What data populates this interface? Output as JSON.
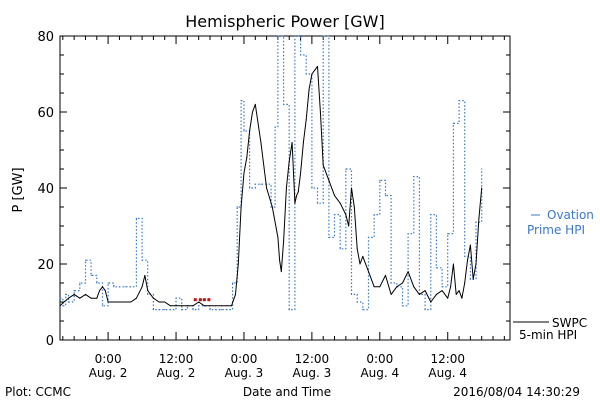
{
  "chart_data": {
    "type": "line",
    "title": "Hemispheric Power [GW]",
    "ylabel": "P [GW]",
    "xlabel": "Date and Time",
    "ylim": [
      0,
      80
    ],
    "xlim": [
      -8.5,
      71
    ],
    "x_unit": "hours from 2016/08/02 00:00 UT",
    "yticks": [
      0,
      20,
      40,
      60,
      80
    ],
    "xticks": [
      {
        "x": 0,
        "time": "0:00",
        "date": "Aug. 2"
      },
      {
        "x": 12,
        "time": "12:00",
        "date": "Aug. 2"
      },
      {
        "x": 24,
        "time": "0:00",
        "date": "Aug. 3"
      },
      {
        "x": 36,
        "time": "12:00",
        "date": "Aug. 3"
      },
      {
        "x": 48,
        "time": "0:00",
        "date": "Aug. 4"
      },
      {
        "x": 60,
        "time": "12:00",
        "date": "Aug. 4"
      }
    ],
    "grid": false,
    "legend": "right",
    "series": [
      {
        "name": "SWPC 5-min HPI",
        "label_lines": [
          "SWPC",
          "5-min HPI"
        ],
        "style": "solid",
        "color": "#000000",
        "x": [
          -8.5,
          -7.8,
          -7,
          -6,
          -5,
          -4,
          -3,
          -2,
          -1.5,
          -1,
          -0.5,
          0,
          1,
          2,
          3,
          4,
          5,
          6,
          6.5,
          7,
          7.5,
          8,
          9,
          10,
          11,
          12,
          13,
          14,
          15,
          16,
          17,
          18,
          19,
          20,
          21,
          21.8,
          22.5,
          23,
          23.5,
          24,
          24.5,
          25,
          25.5,
          26,
          27,
          28,
          29,
          30,
          30.3,
          30.6,
          31,
          31.5,
          32,
          32.5,
          33,
          33.3,
          33.6,
          34,
          34.5,
          35,
          35.5,
          36,
          36.5,
          37,
          37.5,
          38,
          39,
          40,
          41,
          42,
          42.5,
          43,
          43.5,
          44,
          44.5,
          45,
          46,
          47,
          48,
          49,
          50,
          51,
          52,
          53,
          54,
          55,
          56,
          57,
          58,
          59,
          60,
          60.5,
          61,
          61.5,
          62,
          62.5,
          63,
          63.5,
          64,
          64.5,
          65,
          65.5,
          66
        ],
        "y": [
          9,
          10,
          11,
          12,
          11,
          12,
          11,
          11,
          13,
          14,
          13,
          10,
          10,
          10,
          10,
          10,
          11,
          14,
          17,
          13,
          12,
          11,
          10,
          10,
          9,
          9,
          9,
          9,
          9,
          10,
          9,
          9,
          9,
          9,
          9,
          9,
          12,
          20,
          35,
          44,
          48,
          55,
          60,
          62,
          52,
          40,
          35,
          27,
          21,
          18,
          26,
          40,
          47,
          52,
          36,
          38,
          39,
          44,
          52,
          58,
          66,
          70,
          71,
          72,
          60,
          46,
          42,
          38,
          36,
          33,
          30,
          40,
          35,
          24,
          20,
          22,
          18,
          14,
          14,
          17,
          12,
          14,
          15,
          18,
          14,
          12,
          13,
          10,
          12,
          13,
          11,
          14,
          20,
          12,
          13,
          11,
          15,
          21,
          25,
          16,
          20,
          32,
          40
        ],
        "highlight_x": [
          15.4,
          16.3,
          17,
          17.8
        ]
      },
      {
        "name": "Ovation Prime HPI",
        "label_lines": [
          "Ovation",
          "Prime HPI"
        ],
        "style": "dotted",
        "color": "#3a78c8",
        "x": [
          -8.5,
          -8,
          -7.5,
          -7,
          -6,
          -5,
          -4,
          -3,
          -2,
          -1,
          0,
          1,
          2,
          3,
          4,
          5,
          6,
          7,
          8,
          9,
          10,
          11,
          12,
          13,
          14,
          15,
          16,
          17,
          18,
          19,
          20,
          21,
          22,
          22.8,
          23.5,
          24,
          25,
          26,
          27,
          28,
          28.8,
          29.5,
          30,
          31,
          32,
          33,
          34,
          35,
          36,
          37,
          38,
          39,
          40,
          41,
          42,
          43,
          44,
          45,
          46,
          47,
          48,
          49,
          50,
          51,
          52,
          53,
          54,
          55,
          56,
          57,
          58,
          59,
          60,
          61,
          62,
          63,
          64,
          65,
          66
        ],
        "y": [
          11,
          9,
          12,
          10,
          13,
          15,
          21,
          17,
          15,
          9,
          15,
          14,
          14,
          14,
          14,
          32,
          21,
          12,
          8,
          8,
          8,
          8,
          11,
          8,
          9,
          8,
          9,
          9,
          8,
          8,
          8,
          8,
          15,
          35,
          63,
          55,
          40,
          41,
          41,
          41,
          35,
          56,
          80,
          62,
          8,
          80,
          75,
          70,
          40,
          36,
          80,
          27,
          33,
          24,
          45,
          12,
          10,
          8,
          27,
          33,
          42,
          38,
          15,
          14,
          9,
          28,
          43,
          12,
          8,
          33,
          19,
          14,
          28,
          57,
          63,
          22,
          16,
          31,
          45
        ]
      }
    ]
  },
  "footer": {
    "left": "Plot: CCMC",
    "center": "Date and Time",
    "right": "2016/08/04 14:30:29"
  },
  "colors": {
    "swpc": "#000000",
    "ovation": "#3a78c8",
    "axes": "#000000"
  }
}
